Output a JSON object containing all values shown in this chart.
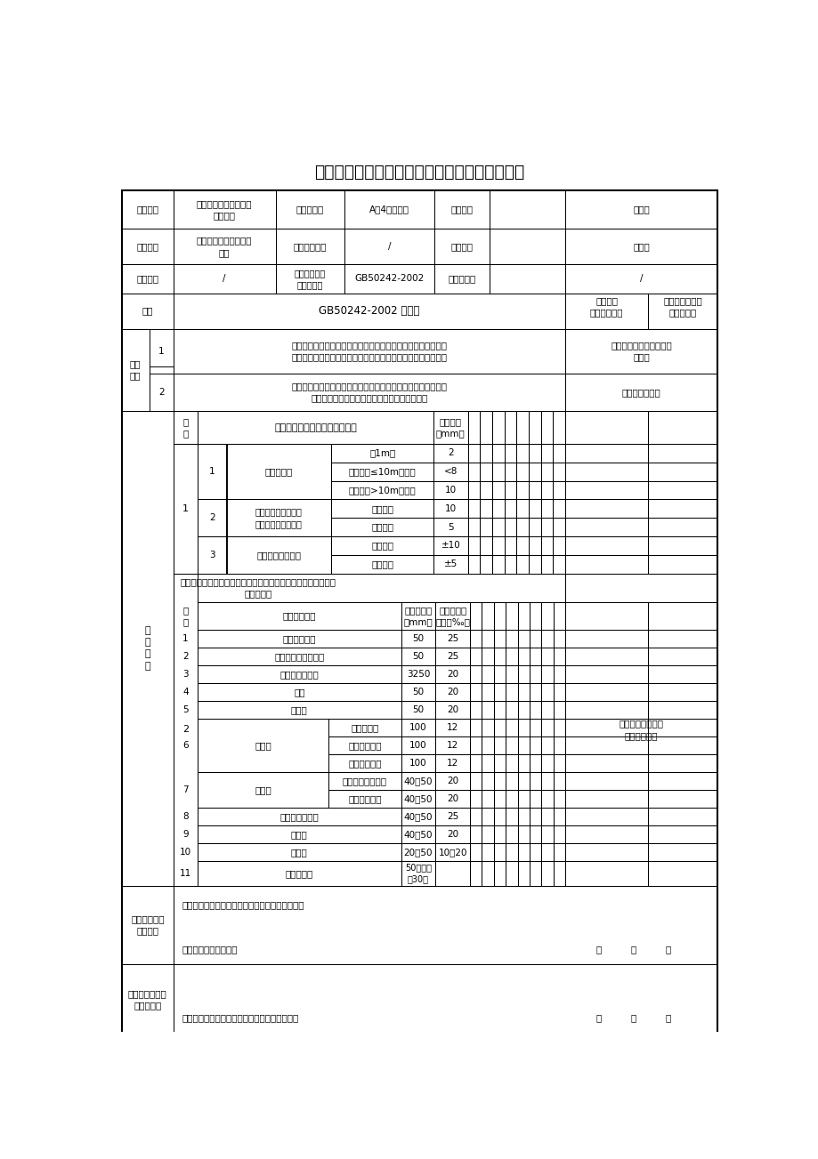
{
  "title": "卫生器具排水配件安装工程检验批质量验收记录",
  "bg_color": "#ffffff",
  "line_color": "#000000",
  "font_color": "#000000",
  "header": [
    [
      "工程名称",
      "吴江知音大酒店盛泽店\n装饰工程",
      "检验批部位",
      "A区4层卫生间",
      "项目经理",
      "",
      "胡为庆"
    ],
    [
      "施工单位",
      "苏州万业装饰工程有限\n公司",
      "分包项目经理",
      "/",
      "专业工长",
      "",
      "施新华"
    ],
    [
      "分包单位",
      "/",
      "施工执行标准\n名称及编号",
      "GB50242-2002",
      "施工班组长",
      "",
      "/"
    ]
  ],
  "seq_row": [
    "序号",
    "GB50242-2002 的规定",
    "施工单位\n检查评定记录",
    "监理（建设）单\n位验收意见"
  ],
  "main_ctrl": [
    [
      "1",
      "与排水横管连接的各卫生器具的受水和立管均应采取妥善可靠的\n固定措施；管道与楼板的结合部应采取牢固可靠的防漏防渗措施",
      "管道与楼板结合部已做防\n水处理"
    ],
    [
      "2",
      "连接卫生器具的排水管道接口应紧密不漏，其固定支架、管卡等\n支撑位置应正确、牢固，与管道的接触应平整。",
      "接口紧密、平整"
    ]
  ],
  "gen_subhdr": [
    "项\n次",
    "检查项目（卫生器具排水管道）",
    "允许偏差\n（mm）"
  ],
  "gen_items_1": [
    {
      "outer": "1",
      "inner": "1",
      "name": "横管弯曲度",
      "subs": [
        [
          "每1m长",
          "2"
        ],
        [
          "横管长度≤10m，全长",
          "<8"
        ],
        [
          "横管长度>10m，全长",
          "10"
        ]
      ]
    },
    {
      "outer": "",
      "inner": "2",
      "name": "卫生器具的排水支管\n及横支管的纵横坐标",
      "subs": [
        [
          "单独器具",
          "10"
        ],
        [
          "成排器具",
          "5"
        ]
      ]
    },
    {
      "outer": "",
      "inner": "3",
      "name": "卫生器具接口标高",
      "subs": [
        [
          "单独器具",
          "±10"
        ],
        [
          "成排器具",
          "±5"
        ]
      ]
    }
  ],
  "gen_intro": "连接卫生器具的排水管径和最小坡度，如无设计要求时，应符合\n下表规定。",
  "pipe_subhdr": [
    "项\n次",
    "卫生器具名称",
    "排水管管径\n（mm）",
    "管道的最小\n坡度（‰）"
  ],
  "pipe_items": [
    {
      "no": "1",
      "name": "污水盆（池）",
      "sub": "",
      "diam": "50",
      "slope": "25"
    },
    {
      "no": "2",
      "name": "单双格洗涤盆（池）",
      "sub": "",
      "diam": "50",
      "slope": "25"
    },
    {
      "no": "3",
      "name": "洗手盆、洗脸盆",
      "sub": "",
      "diam": "3250",
      "slope": "20"
    },
    {
      "no": "4",
      "name": "浴盆",
      "sub": "",
      "diam": "50",
      "slope": "20"
    },
    {
      "no": "5",
      "name": "淋浴器",
      "sub": "",
      "diam": "50",
      "slope": "20"
    },
    {
      "no": "6",
      "name": "大便器",
      "sub": "高、低水箱",
      "diam": "100",
      "slope": "12"
    },
    {
      "no": "",
      "name": "",
      "sub": "自闭式冲洗阀",
      "diam": "100",
      "slope": "12"
    },
    {
      "no": "",
      "name": "",
      "sub": "拉管式冲洗阀",
      "diam": "100",
      "slope": "12"
    },
    {
      "no": "7",
      "name": "小便器",
      "sub": "手动自闭式冲洗阀",
      "diam": "40～50",
      "slope": "20"
    },
    {
      "no": "",
      "name": "",
      "sub": "自动冲洗水箱",
      "diam": "40～50",
      "slope": "20"
    },
    {
      "no": "8",
      "name": "化验盆（无塞）",
      "sub": "",
      "diam": "40～50",
      "slope": "25"
    },
    {
      "no": "9",
      "name": "净身器",
      "sub": "",
      "diam": "40～50",
      "slope": "20"
    },
    {
      "no": "10",
      "name": "饮水机",
      "sub": "",
      "diam": "20～50",
      "slope": "10～20"
    },
    {
      "no": "11",
      "name": "家用洗衣机",
      "sub": "",
      "diam": "50（软管\n为30）",
      "slope": ""
    }
  ],
  "pipe_remark": "排水管径和最小坡\n度均符合规定",
  "eval_label": "施工单位检查\n评定结果",
  "eval_text": "经现场检查各项均符合质量验收规范评定为合格。",
  "eval_sign": "项目专业质量检查员：",
  "jl_label": "监理（建设）单\n位验收结论",
  "jl_sign": "监理工程师（建设单位项目专业技术负责人）："
}
